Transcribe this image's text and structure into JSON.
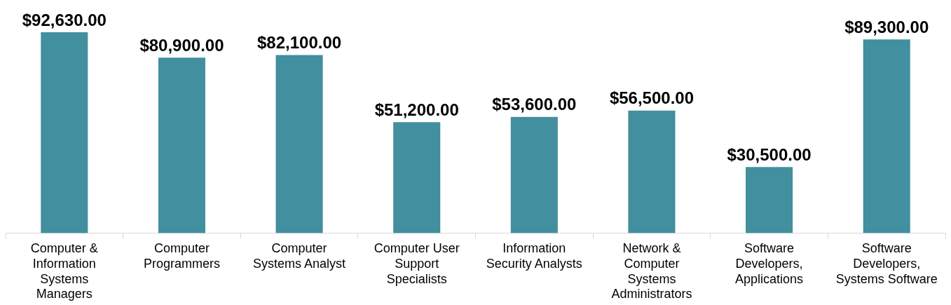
{
  "chart_data": {
    "type": "bar",
    "categories": [
      "Computer & Information Systems Managers",
      "Computer Programmers",
      "Computer Systems Analyst",
      "Computer User Support Specialists",
      "Information Security Analysts",
      "Network & Computer Systems Administrators",
      "Software Developers, Applications",
      "Software Developers, Systems Software"
    ],
    "values": [
      92630,
      80900,
      82100,
      51200,
      53600,
      56500,
      30500,
      89300
    ],
    "value_labels": [
      "$92,630.00",
      "$80,900.00",
      "$82,100.00",
      "$51,200.00",
      "$53,600.00",
      "$56,500.00",
      "$30,500.00",
      "$89,300.00"
    ],
    "color": "#418f9f",
    "grid": false,
    "legend": false
  }
}
